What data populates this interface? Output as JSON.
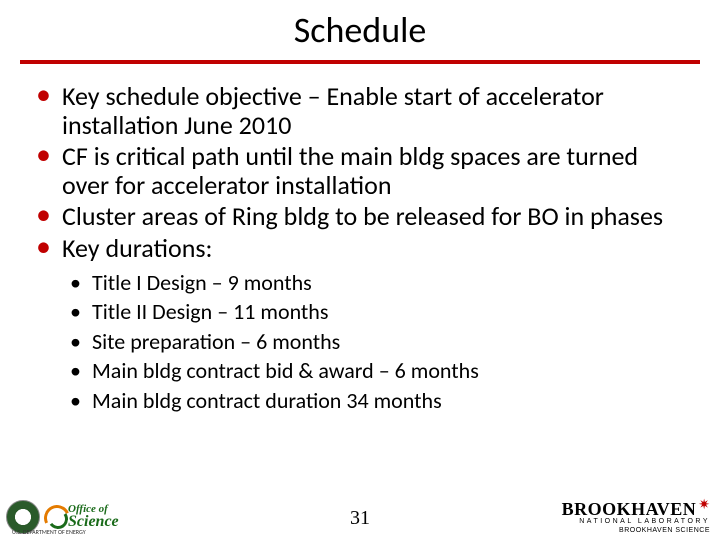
{
  "title": "Schedule",
  "bullets": {
    "main": [
      "Key schedule objective – Enable start of accelerator installation June 2010",
      "CF is critical path until the main bldg spaces are  turned over for accelerator installation",
      "Cluster areas of Ring bldg to be released for BO in phases",
      "Key durations:"
    ],
    "sub": [
      "Title I Design – 9 months",
      "Title II Design – 11 months",
      "Site preparation – 6 months",
      "Main bldg contract bid & award – 6 months",
      "Main bldg contract duration 34 months"
    ]
  },
  "slide_number": "31",
  "footer": {
    "office_of": "Office of",
    "science": "Science",
    "doe_label": "U.S. DEPARTMENT OF ENERGY",
    "bnl_main": "BROOKHAVEN",
    "bnl_sub": "NATIONAL LABORATORY",
    "bnl_science": "BROOKHAVEN SCIENCE"
  },
  "colors": {
    "accent": "#c00000",
    "text": "#000000",
    "background": "#ffffff",
    "sc_green": "#1a6b1a",
    "sc_orange": "#e47b00"
  }
}
